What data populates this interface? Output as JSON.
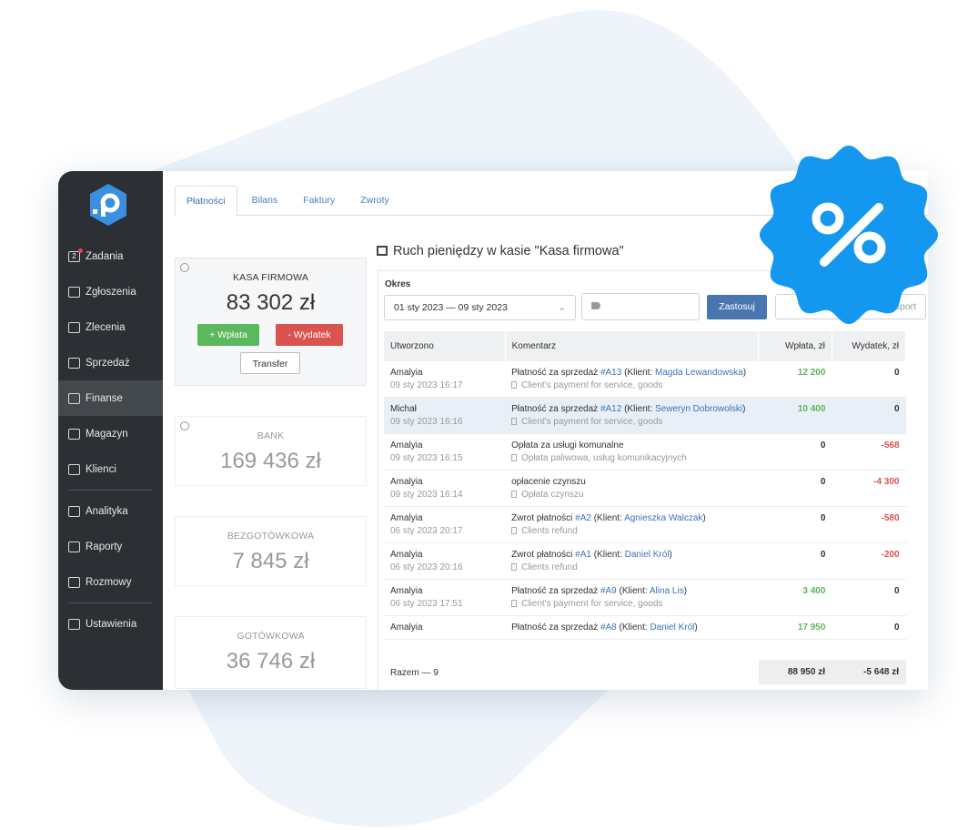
{
  "sidebar": {
    "groups": [
      [
        {
          "label": "Zadania",
          "badge": "2"
        },
        {
          "label": "Zgłoszenia"
        },
        {
          "label": "Zlecenia"
        },
        {
          "label": "Sprzedaż"
        },
        {
          "label": "Finanse",
          "active": true
        },
        {
          "label": "Magazyn"
        },
        {
          "label": "Klienci"
        }
      ],
      [
        {
          "label": "Analityka"
        },
        {
          "label": "Raporty"
        },
        {
          "label": "Rozmowy"
        }
      ],
      [
        {
          "label": "Ustawienia"
        }
      ]
    ]
  },
  "tabs": {
    "items": [
      "Płatności",
      "Bilans",
      "Faktury",
      "Zwroty"
    ],
    "active": 0
  },
  "cards": [
    {
      "title": "KASA FIRMOWA",
      "amount": "83 302 zł"
    },
    {
      "title": "BANK",
      "amount": "169 436 zł"
    },
    {
      "title": "BEZGOTÓWKOWA",
      "amount": "7 845 zł"
    },
    {
      "title": "GOTÓWKOWA",
      "amount": "36 746 zł"
    }
  ],
  "cash_actions": {
    "deposit": "+ Wpłata",
    "expense": "- Wydatek",
    "transfer": "Transfer"
  },
  "panel": {
    "title": "Ruch pieniędzy w kasie \"Kasa firmowa\"",
    "period_label": "Okres",
    "period": "01 sty 2023 — 09 sty 2023",
    "apply": "Zastosuj",
    "export": "Eksport"
  },
  "table": {
    "columns": [
      "Utworzono",
      "Komentarz",
      "Wpłata, zł",
      "Wydatek, zł"
    ],
    "client_prefix": "(Klient:",
    "client_suffix": ")",
    "rows": [
      {
        "author": "Amalyia",
        "date": "09 sty 2023 16:17",
        "comment": {
          "text": "Płatność za sprzedaż",
          "ref": "#A13",
          "client": "Magda Lewandowska"
        },
        "note": "Client's payment for service, goods",
        "income": "12 200",
        "expense": "0"
      },
      {
        "author": "Michał",
        "date": "09 sty 2023 16:16",
        "comment": {
          "text": "Płatność za sprzedaż",
          "ref": "#A12",
          "client": "Seweryn Dobrowolski"
        },
        "note": "Client's payment for service, goods",
        "income": "10 400",
        "expense": "0",
        "highlighted": true
      },
      {
        "author": "Amalyia",
        "date": "09 sty 2023 16:15",
        "comment": {
          "text": "Opłata za usługi komunalne"
        },
        "note": "Opłata paliwowa, usług komunikacyjnych",
        "income": "0",
        "expense": "-568"
      },
      {
        "author": "Amalyia",
        "date": "09 sty 2023 16:14",
        "comment": {
          "text": "opłacenie czynszu"
        },
        "note": "Opłata czynszu",
        "income": "0",
        "expense": "-4 300"
      },
      {
        "author": "Amalyia",
        "date": "06 sty 2023 20:17",
        "comment": {
          "text": "Zwrot płatności",
          "ref": "#A2",
          "client": "Agnieszka Walczak"
        },
        "note": "Clients refund",
        "income": "0",
        "expense": "-580"
      },
      {
        "author": "Amalyia",
        "date": "06 sty 2023 20:16",
        "comment": {
          "text": "Zwrot płatności",
          "ref": "#A1",
          "client": "Daniel Król"
        },
        "note": "Clients refund",
        "income": "0",
        "expense": "-200"
      },
      {
        "author": "Amalyia",
        "date": "06 sty 2023 17:51",
        "comment": {
          "text": "Płatność za sprzedaż",
          "ref": "#A9",
          "client": "Alina Lis"
        },
        "note": "Client's payment for service, goods",
        "income": "3 400",
        "expense": "0"
      },
      {
        "author": "Amalyia",
        "comment": {
          "text": "Płatność za sprzedaż",
          "ref": "#A8",
          "client": "Daniel Król"
        },
        "income": "17 950",
        "expense": "0"
      }
    ],
    "footer": {
      "label": "Razem — 9",
      "income": "88 950 zł",
      "expense": "-5 648 zł"
    }
  }
}
